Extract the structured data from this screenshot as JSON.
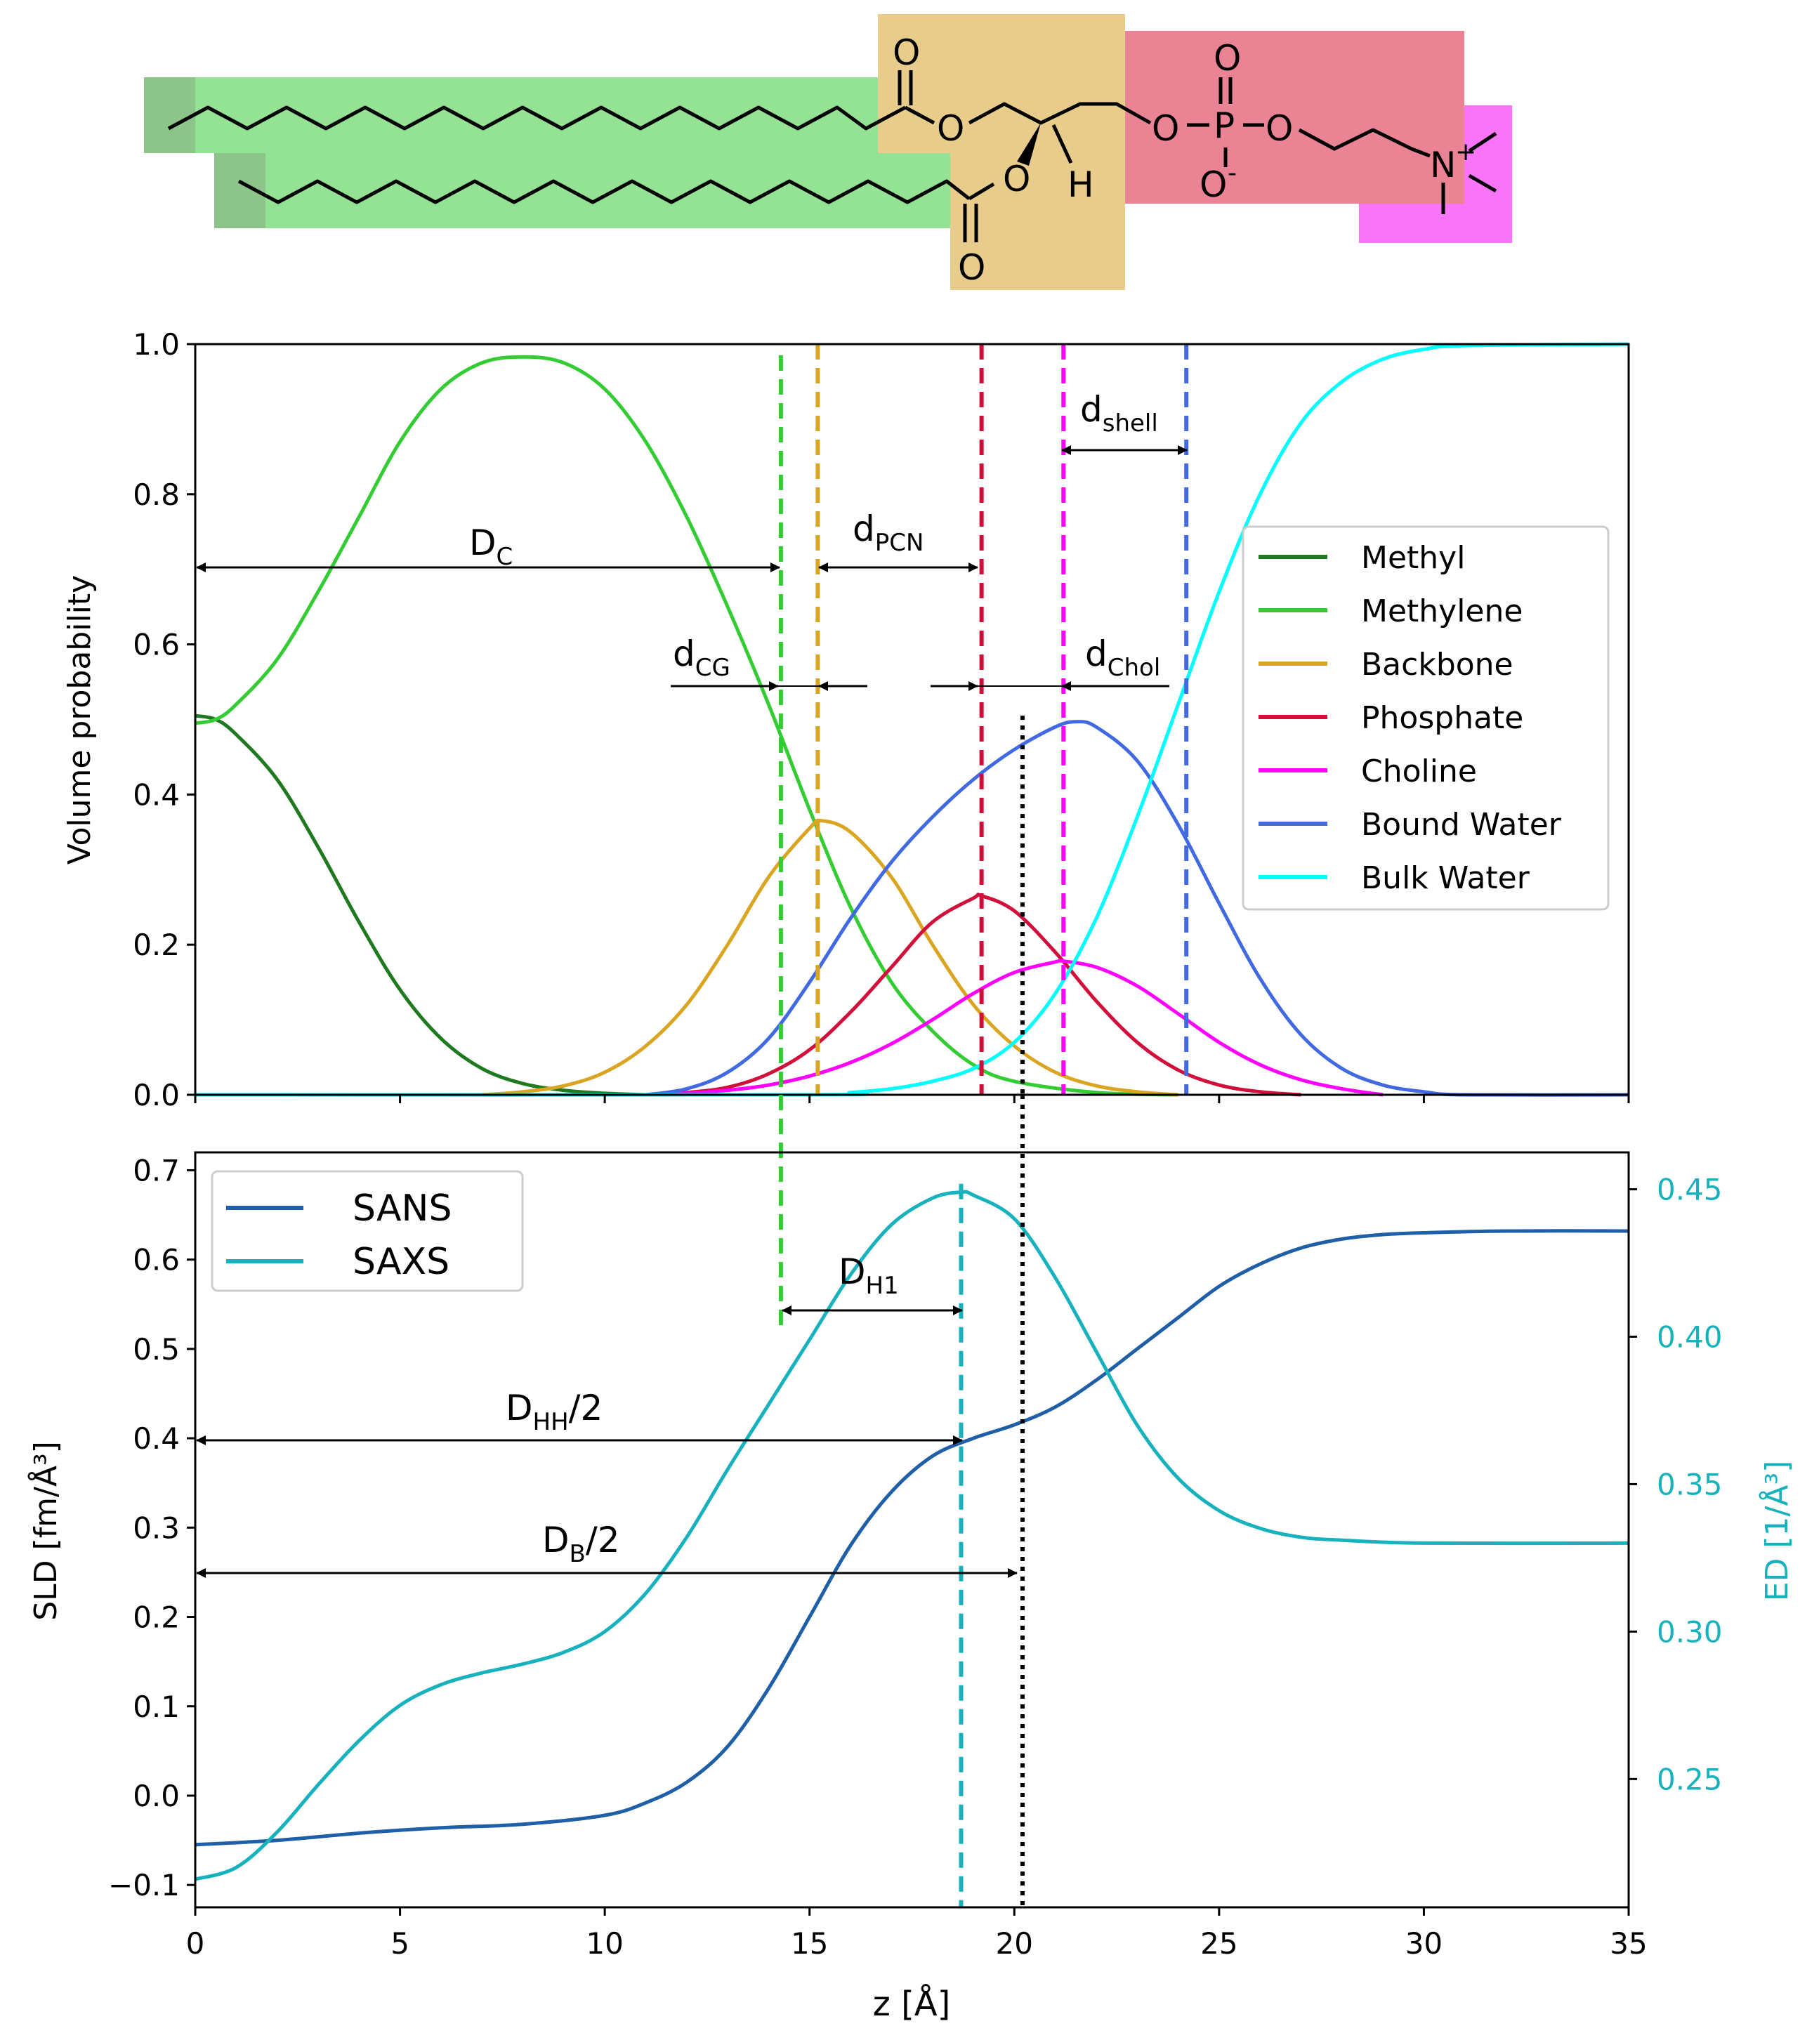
{
  "molecule": {
    "atoms": {
      "carbonyl_o_top": "O",
      "ester_o_top": "O",
      "ester_o_bottom": "O",
      "carbonyl_o_bottom": "O",
      "hydrogen": "H",
      "phosphorus": "P",
      "phosphate_o_top": "O",
      "phosphate_o_left": "O",
      "phosphate_o_right": "O",
      "phosphate_o_minus": "O",
      "minus_sign": "-",
      "nitrogen": "N",
      "plus_sign": "+"
    },
    "colors": {
      "methyl": "#8cc48a",
      "methylene": "#94e294",
      "backbone": "#e8cc8c",
      "phosphate": "#ea8494",
      "choline": "#fa74fa"
    }
  },
  "chart_data": [
    {
      "type": "line",
      "title": "",
      "xlabel": "",
      "ylabel": "Volume probability",
      "xlim": [
        0,
        35
      ],
      "ylim": [
        0,
        1.0
      ],
      "xticks": [
        0,
        5,
        10,
        15,
        20,
        25,
        30,
        35
      ],
      "yticks": [
        "0.0",
        "0.2",
        "0.4",
        "0.6",
        "0.8",
        "1.0"
      ],
      "legend_position": "center-right",
      "series": [
        {
          "name": "Methyl",
          "color": "#1f7a1f",
          "x": [
            0,
            0.5,
            1,
            2,
            3,
            4,
            5,
            6,
            7,
            8,
            9,
            10,
            11
          ],
          "values": [
            0.505,
            0.5,
            0.48,
            0.42,
            0.33,
            0.23,
            0.14,
            0.075,
            0.035,
            0.015,
            0.006,
            0.002,
            0.0
          ]
        },
        {
          "name": "Methylene",
          "color": "#33cc33",
          "x": [
            0,
            0.5,
            1,
            2,
            3,
            4,
            5,
            6,
            7,
            8,
            9,
            10,
            11,
            12,
            13,
            14,
            15,
            16,
            17,
            18,
            19,
            20,
            22,
            24
          ],
          "values": [
            0.495,
            0.5,
            0.52,
            0.58,
            0.67,
            0.77,
            0.87,
            0.94,
            0.975,
            0.983,
            0.975,
            0.94,
            0.87,
            0.77,
            0.65,
            0.52,
            0.38,
            0.25,
            0.15,
            0.085,
            0.04,
            0.018,
            0.003,
            0.0
          ]
        },
        {
          "name": "Backbone",
          "color": "#daa520",
          "x": [
            7,
            8,
            9,
            10,
            11,
            12,
            13,
            14,
            15,
            15.3,
            16,
            17,
            18,
            19,
            20,
            21,
            22,
            23,
            24
          ],
          "values": [
            0.0,
            0.004,
            0.012,
            0.03,
            0.065,
            0.12,
            0.2,
            0.29,
            0.355,
            0.365,
            0.35,
            0.29,
            0.2,
            0.12,
            0.065,
            0.03,
            0.012,
            0.004,
            0.0
          ]
        },
        {
          "name": "Phosphate",
          "color": "#d0103a",
          "x": [
            11,
            12,
            13,
            14,
            15,
            16,
            17,
            18,
            19,
            19.2,
            20,
            21,
            22,
            23,
            24,
            25,
            26,
            27
          ],
          "values": [
            0.0,
            0.003,
            0.01,
            0.028,
            0.06,
            0.11,
            0.17,
            0.23,
            0.262,
            0.265,
            0.245,
            0.19,
            0.125,
            0.07,
            0.033,
            0.013,
            0.004,
            0.0
          ]
        },
        {
          "name": "Choline",
          "color": "#ff00ff",
          "x": [
            11,
            12,
            13,
            14,
            15,
            16,
            17,
            18,
            19,
            20,
            21,
            21.2,
            22,
            23,
            24,
            25,
            26,
            27,
            28,
            29
          ],
          "values": [
            0.0,
            0.002,
            0.006,
            0.013,
            0.025,
            0.043,
            0.068,
            0.1,
            0.135,
            0.163,
            0.177,
            0.178,
            0.17,
            0.145,
            0.108,
            0.07,
            0.04,
            0.02,
            0.008,
            0.0
          ]
        },
        {
          "name": "Bound Water",
          "color": "#4169e1",
          "x": [
            11,
            12,
            13,
            14,
            15,
            16,
            17,
            18,
            19,
            20,
            21,
            21.5,
            22,
            23,
            24,
            25,
            26,
            27,
            28,
            29,
            30,
            31,
            35
          ],
          "values": [
            0.0,
            0.008,
            0.03,
            0.075,
            0.15,
            0.235,
            0.31,
            0.37,
            0.42,
            0.46,
            0.49,
            0.497,
            0.49,
            0.445,
            0.36,
            0.255,
            0.155,
            0.08,
            0.035,
            0.013,
            0.004,
            0.0,
            0.0
          ]
        },
        {
          "name": "Bulk Water",
          "color": "#00ffff",
          "x": [
            0,
            15,
            16,
            17,
            18,
            19,
            20,
            21,
            22,
            23,
            24,
            25,
            26,
            27,
            28,
            29,
            30,
            31,
            35
          ],
          "values": [
            0.0,
            0.0,
            0.003,
            0.008,
            0.018,
            0.035,
            0.07,
            0.135,
            0.235,
            0.37,
            0.52,
            0.67,
            0.8,
            0.895,
            0.95,
            0.98,
            0.993,
            0.998,
            1.0
          ]
        }
      ],
      "vertical_lines": [
        {
          "x": 14.3,
          "color": "#33cc33",
          "style": "dashed"
        },
        {
          "x": 15.2,
          "color": "#daa520",
          "style": "dashed"
        },
        {
          "x": 19.2,
          "color": "#d0103a",
          "style": "dashed"
        },
        {
          "x": 21.2,
          "color": "#ff00ff",
          "style": "dashed"
        },
        {
          "x": 24.2,
          "color": "#4169e1",
          "style": "dashed"
        },
        {
          "x": 20.2,
          "color": "#000000",
          "style": "dotted"
        }
      ],
      "annotations": [
        {
          "id": "DC",
          "main": "D",
          "sub": "C"
        },
        {
          "id": "dPCN",
          "main": "d",
          "sub": "PCN"
        },
        {
          "id": "dshell",
          "main": "d",
          "sub": "shell"
        },
        {
          "id": "dCG",
          "main": "d",
          "sub": "CG"
        },
        {
          "id": "dChol",
          "main": "d",
          "sub": "Chol"
        }
      ]
    },
    {
      "type": "line",
      "title": "",
      "xlabel": "z [Å]",
      "ylabel": "SLD [fm/Å³]",
      "y2label": "ED [1/Å³]",
      "xlim": [
        0,
        35
      ],
      "ylim": [
        -0.125,
        0.72
      ],
      "y2lim": [
        0.2065,
        0.4625
      ],
      "xticks": [
        0,
        5,
        10,
        15,
        20,
        25,
        30,
        35
      ],
      "yticks": [
        "−0.1",
        "0.0",
        "0.1",
        "0.2",
        "0.3",
        "0.4",
        "0.5",
        "0.6",
        "0.7"
      ],
      "y2ticks": [
        "0.25",
        "0.30",
        "0.35",
        "0.40",
        "0.45"
      ],
      "legend_position": "top-left",
      "series": [
        {
          "name": "SANS",
          "color": "#1f5fa8",
          "axis": "left",
          "x": [
            0,
            2,
            4,
            6,
            8,
            10,
            11,
            12,
            13,
            14,
            15,
            16,
            17,
            18,
            19,
            20,
            21,
            22,
            23,
            24,
            25,
            26,
            27,
            28,
            29,
            30,
            32,
            35
          ],
          "values": [
            -0.055,
            -0.05,
            -0.042,
            -0.036,
            -0.032,
            -0.022,
            -0.008,
            0.015,
            0.055,
            0.12,
            0.2,
            0.28,
            0.34,
            0.38,
            0.4,
            0.415,
            0.435,
            0.465,
            0.5,
            0.535,
            0.57,
            0.595,
            0.613,
            0.623,
            0.628,
            0.63,
            0.632,
            0.632
          ]
        },
        {
          "name": "SAXS",
          "color": "#17b2be",
          "axis": "right",
          "x": [
            0,
            1,
            2,
            3,
            4,
            5,
            6,
            7,
            8,
            9,
            10,
            11,
            12,
            13,
            14,
            15,
            16,
            17,
            18,
            18.7,
            19,
            20,
            21,
            22,
            23,
            24,
            25,
            26,
            27,
            28,
            30,
            35
          ],
          "values": [
            0.216,
            0.22,
            0.232,
            0.248,
            0.263,
            0.275,
            0.282,
            0.286,
            0.289,
            0.293,
            0.3,
            0.313,
            0.332,
            0.355,
            0.377,
            0.399,
            0.421,
            0.438,
            0.447,
            0.449,
            0.448,
            0.44,
            0.42,
            0.395,
            0.37,
            0.352,
            0.341,
            0.335,
            0.332,
            0.331,
            0.33,
            0.33
          ]
        }
      ],
      "vertical_lines": [
        {
          "x": 18.7,
          "color": "#17b2be",
          "style": "dashed"
        },
        {
          "x": 20.2,
          "color": "#000000",
          "style": "dotted"
        }
      ],
      "annotations": [
        {
          "id": "DH1",
          "main": "D",
          "sub": "H1"
        },
        {
          "id": "DHH",
          "main": "D",
          "sub": "HH",
          "suffix": "/2"
        },
        {
          "id": "DB",
          "main": "D",
          "sub": "B",
          "suffix": "/2"
        }
      ]
    }
  ]
}
